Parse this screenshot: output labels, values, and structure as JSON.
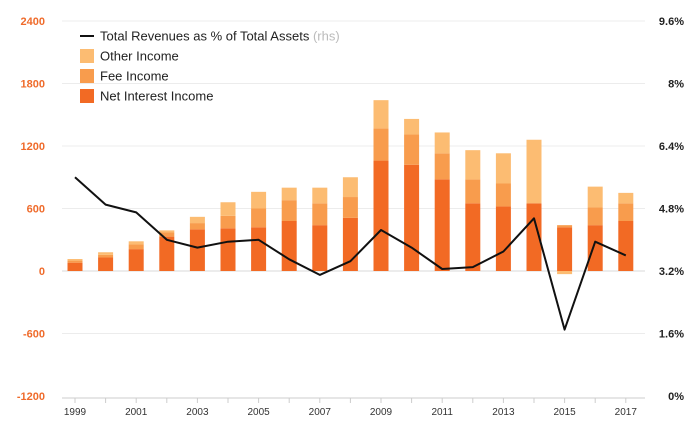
{
  "chart_data": {
    "type": "bar+line",
    "x": [
      1999,
      2000,
      2001,
      2002,
      2003,
      2004,
      2005,
      2006,
      2007,
      2008,
      2009,
      2010,
      2011,
      2012,
      2013,
      2014,
      2015,
      2016,
      2017
    ],
    "x_tick_labels": [
      "1999",
      "2001",
      "2003",
      "2005",
      "2007",
      "2009",
      "2011",
      "2013",
      "2015",
      "2017"
    ],
    "left_axis": {
      "ylim": [
        -1200,
        2400
      ],
      "ticks": [
        "2400",
        "1800",
        "1200",
        "600",
        "0",
        "-600",
        "-1200"
      ]
    },
    "right_axis": {
      "ylim": [
        0,
        9.6
      ],
      "ticks": [
        "9.6%",
        "8%",
        "6.4%",
        "4.8%",
        "3.2%",
        "1.6%",
        "0%"
      ]
    },
    "series": [
      {
        "name": "Net Interest Income",
        "type": "stacked-bar",
        "color": "#f26a24",
        "values": [
          80,
          130,
          210,
          330,
          400,
          410,
          420,
          480,
          440,
          510,
          1060,
          1020,
          880,
          650,
          620,
          650,
          420,
          440,
          480
        ]
      },
      {
        "name": "Fee Income",
        "type": "stacked-bar",
        "color": "#f89c4d",
        "values": [
          20,
          25,
          45,
          40,
          60,
          120,
          180,
          200,
          210,
          200,
          310,
          290,
          250,
          230,
          220,
          0,
          20,
          170,
          170
        ]
      },
      {
        "name": "Other Income",
        "type": "stacked-bar",
        "color": "#fcbc72",
        "values": [
          15,
          25,
          30,
          20,
          60,
          130,
          160,
          120,
          150,
          190,
          270,
          150,
          200,
          280,
          290,
          610,
          -30,
          200,
          100
        ]
      },
      {
        "name": "Total Revenues as % of Total Assets",
        "type": "line",
        "axis": "right",
        "color": "#111111",
        "values": [
          5.6,
          4.9,
          4.7,
          4.0,
          3.8,
          3.95,
          4.0,
          3.5,
          3.1,
          3.45,
          4.25,
          3.8,
          3.25,
          3.3,
          3.7,
          4.55,
          1.7,
          3.95,
          3.6
        ]
      }
    ],
    "legend": [
      {
        "label": "Total Revenues as % of Total Assets",
        "suffix": "(rhs)",
        "marker": "line",
        "color": "#111111"
      },
      {
        "label": "Other Income",
        "marker": "box",
        "color": "#fcbc72"
      },
      {
        "label": "Fee Income",
        "marker": "box",
        "color": "#f89c4d"
      },
      {
        "label": "Net Interest Income",
        "marker": "box",
        "color": "#f26a24"
      }
    ],
    "legend_position": "top-left",
    "grid": true
  }
}
